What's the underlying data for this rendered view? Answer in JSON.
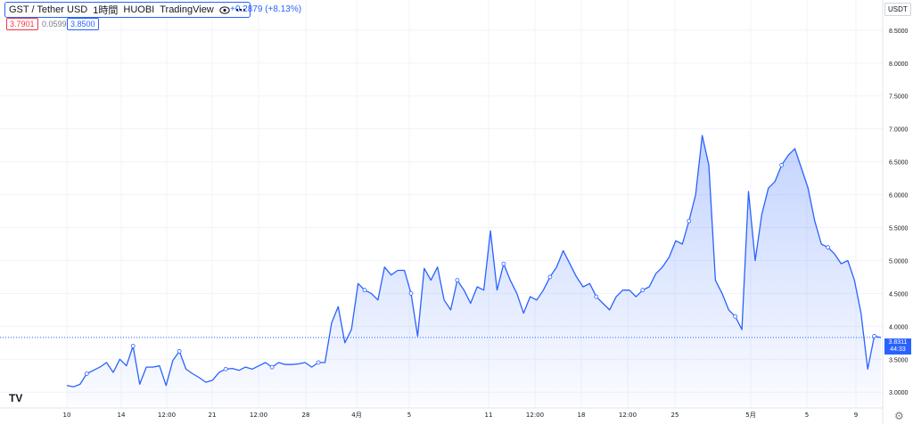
{
  "legend": {
    "symbol": "GST / Tether USD",
    "interval": "1時間",
    "exchange": "HUOBI",
    "source": "TradingView",
    "change": "+0.2879 (+8.13%)"
  },
  "quote": {
    "bid": "3.7901",
    "spread": "0.0599",
    "ask": "3.8500"
  },
  "currency": "USDT",
  "last_price": {
    "value": "3.8311",
    "countdown": "44:33"
  },
  "logo_text": "TV",
  "colors": {
    "line": "#2962ff",
    "fill": "#2962ff",
    "grid": "#f0f3fa",
    "axis_text": "#131722"
  },
  "icons": {
    "eye": "eye-icon",
    "more": "more-dots-icon",
    "settings": "gear-icon"
  },
  "chart_data": {
    "type": "area",
    "title": "GST / Tether USD",
    "y_ticks": [
      "3.0000",
      "3.5000",
      "4.0000",
      "4.5000",
      "5.0000",
      "5.5000",
      "6.0000",
      "6.5000",
      "7.0000",
      "7.5000",
      "8.0000",
      "8.5000"
    ],
    "ylim": [
      2.8,
      8.85
    ],
    "x_ticks": [
      "10",
      "14",
      "12:00",
      "21",
      "12:00",
      "28",
      "4月",
      "5",
      "11",
      "12:00",
      "18",
      "12:00",
      "25",
      "5月",
      "5",
      "9"
    ],
    "grid": true,
    "series": [
      {
        "values": [
          3.1,
          3.08,
          3.12,
          3.28,
          3.33,
          3.38,
          3.45,
          3.3,
          3.5,
          3.4,
          3.7,
          3.12,
          3.38,
          3.38,
          3.4,
          3.1,
          3.48,
          3.62,
          3.35,
          3.28,
          3.22,
          3.15,
          3.18,
          3.3,
          3.35,
          3.36,
          3.33,
          3.38,
          3.35,
          3.4,
          3.45,
          3.38,
          3.45,
          3.42,
          3.42,
          3.43,
          3.45,
          3.38,
          3.45,
          3.45,
          4.05,
          4.3,
          3.75,
          3.95,
          4.65,
          4.55,
          4.5,
          4.4,
          4.9,
          4.78,
          4.85,
          4.85,
          4.5,
          3.85,
          4.88,
          4.7,
          4.9,
          4.4,
          4.25,
          4.7,
          4.55,
          4.35,
          4.6,
          4.55,
          5.45,
          4.55,
          4.95,
          4.7,
          4.5,
          4.2,
          4.45,
          4.4,
          4.55,
          4.75,
          4.9,
          5.15,
          4.95,
          4.75,
          4.6,
          4.65,
          4.45,
          4.35,
          4.25,
          4.45,
          4.55,
          4.55,
          4.45,
          4.55,
          4.6,
          4.8,
          4.9,
          5.05,
          5.3,
          5.25,
          5.6,
          6.0,
          6.9,
          6.45,
          4.7,
          4.5,
          4.25,
          4.15,
          3.95,
          6.05,
          5.0,
          5.7,
          6.1,
          6.2,
          6.45,
          6.6,
          6.7,
          6.4,
          6.1,
          5.6,
          5.25,
          5.2,
          5.1,
          4.95,
          5.0,
          4.7,
          4.2,
          3.35,
          3.85,
          3.83
        ]
      }
    ]
  }
}
